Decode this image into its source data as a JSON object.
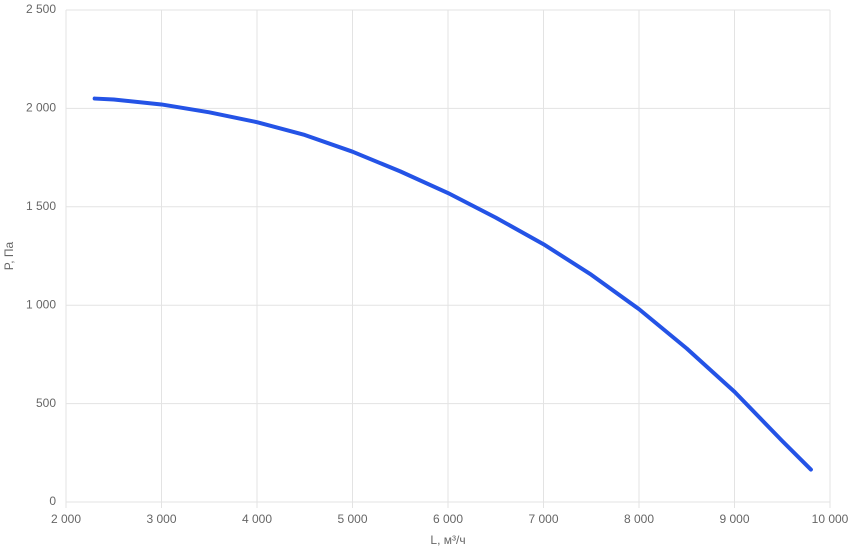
{
  "chart_data": {
    "type": "line",
    "x_label": "L, м³/ч",
    "y_label": "P, Па",
    "x": [
      2300,
      2500,
      3000,
      3500,
      4000,
      4500,
      5000,
      5500,
      6000,
      6500,
      7000,
      7500,
      8000,
      8500,
      9000,
      9500,
      9800
    ],
    "series": [
      {
        "color": "#2453e6",
        "values": [
          2050,
          2045,
          2020,
          1980,
          1930,
          1865,
          1780,
          1680,
          1570,
          1445,
          1310,
          1155,
          980,
          780,
          560,
          310,
          165
        ]
      }
    ],
    "xlim": [
      2000,
      10000
    ],
    "xticks": [
      {
        "value": 2000,
        "label": "2 000"
      },
      {
        "value": 3000,
        "label": "3 000"
      },
      {
        "value": 4000,
        "label": "4 000"
      },
      {
        "value": 5000,
        "label": "5 000"
      },
      {
        "value": 6000,
        "label": "6 000"
      },
      {
        "value": 7000,
        "label": "7 000"
      },
      {
        "value": 8000,
        "label": "8 000"
      },
      {
        "value": 9000,
        "label": "9 000"
      },
      {
        "value": 10000,
        "label": "10 000"
      }
    ],
    "ylim": [
      0,
      2500
    ],
    "yticks": [
      0,
      500,
      {
        "value": 1000,
        "label": "1 000"
      },
      {
        "value": 1500,
        "label": "1 500"
      },
      {
        "value": 2000,
        "label": "2 000"
      },
      {
        "value": 2500,
        "label": "2 500"
      }
    ],
    "grid": true
  }
}
